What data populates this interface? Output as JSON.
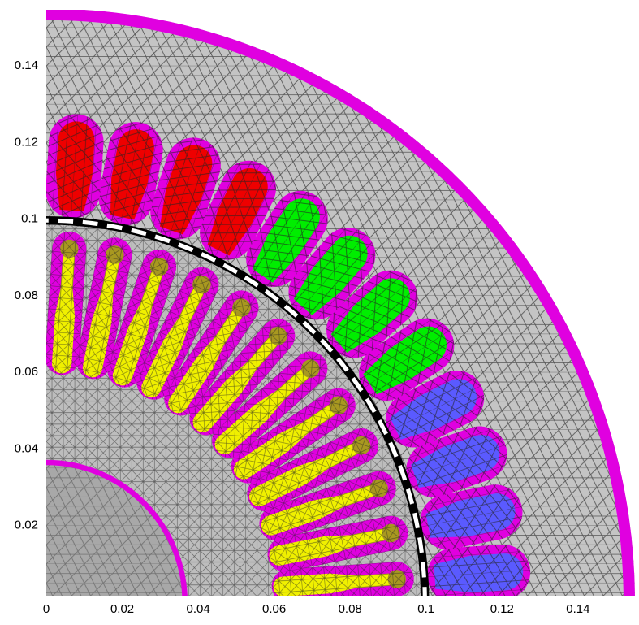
{
  "chart_data": {
    "type": "mesh",
    "xlim": [
      0,
      0.155
    ],
    "ylim": [
      0.0017,
      0.1547
    ],
    "xticks": [
      0,
      0.02,
      0.04,
      0.06,
      0.08,
      0.1,
      0.12,
      0.14
    ],
    "yticks": [
      0.02,
      0.04,
      0.06,
      0.08,
      0.1,
      0.12,
      0.14
    ]
  }
}
